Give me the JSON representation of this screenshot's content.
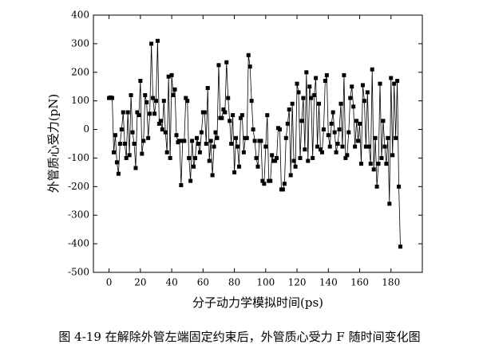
{
  "chart_data": {
    "type": "line",
    "caption": "图 4-19 在解除外管左端固定约束后，外管质心受力 F 随时间变化图",
    "xlabel": "分子动力学模拟时间(ps)",
    "ylabel": "外管质心受力(pN)",
    "xlim": [
      -10,
      200
    ],
    "ylim": [
      -500,
      400
    ],
    "xticks": [
      0,
      20,
      40,
      60,
      80,
      100,
      120,
      140,
      160,
      180
    ],
    "yticks": [
      -500,
      -400,
      -300,
      -200,
      -100,
      0,
      100,
      200,
      300,
      400
    ],
    "color": "#000000",
    "x": [
      0,
      1,
      2,
      3,
      4,
      5,
      6,
      7,
      8,
      9,
      10,
      11,
      12,
      13,
      14,
      15,
      16,
      17,
      18,
      19,
      20,
      21,
      22,
      23,
      24,
      25,
      26,
      27,
      28,
      29,
      30,
      31,
      32,
      33,
      34,
      35,
      36,
      37,
      38,
      39,
      40,
      41,
      42,
      43,
      44,
      45,
      46,
      47,
      48,
      49,
      50,
      51,
      52,
      53,
      54,
      55,
      56,
      57,
      58,
      59,
      60,
      61,
      62,
      63,
      64,
      65,
      66,
      67,
      68,
      69,
      70,
      71,
      72,
      73,
      74,
      75,
      76,
      77,
      78,
      79,
      80,
      81,
      82,
      83,
      84,
      85,
      86,
      87,
      88,
      89,
      90,
      91,
      92,
      93,
      94,
      95,
      96,
      97,
      98,
      99,
      100,
      101,
      102,
      103,
      104,
      105,
      106,
      107,
      108,
      109,
      110,
      111,
      112,
      113,
      114,
      115,
      116,
      117,
      118,
      119,
      120,
      121,
      122,
      123,
      124,
      125,
      126,
      127,
      128,
      129,
      130,
      131,
      132,
      133,
      134,
      135,
      136,
      137,
      138,
      139,
      140,
      141,
      142,
      143,
      144,
      145,
      146,
      147,
      148,
      149,
      150,
      151,
      152,
      153,
      154,
      155,
      156,
      157,
      158,
      159,
      160,
      161,
      162,
      163,
      164,
      165,
      166,
      167,
      168,
      169,
      170,
      171,
      172,
      173,
      174,
      175,
      176,
      177,
      178,
      179,
      180,
      181,
      182,
      183,
      184,
      185,
      186
    ],
    "values": [
      110,
      112,
      110,
      -80,
      -20,
      -115,
      -155,
      -50,
      0,
      60,
      -50,
      -100,
      60,
      -90,
      120,
      -10,
      -50,
      -135,
      60,
      50,
      170,
      -85,
      -40,
      120,
      95,
      -30,
      55,
      300,
      110,
      55,
      100,
      310,
      20,
      30,
      0,
      100,
      -10,
      -80,
      185,
      -100,
      190,
      120,
      140,
      -20,
      -45,
      -40,
      -195,
      -40,
      -40,
      110,
      100,
      -100,
      -180,
      -40,
      -130,
      -100,
      -30,
      -50,
      -80,
      -10,
      60,
      60,
      -50,
      145,
      -110,
      -40,
      -160,
      -60,
      -10,
      -30,
      225,
      40,
      40,
      70,
      60,
      235,
      110,
      30,
      -50,
      50,
      -150,
      -30,
      -60,
      -130,
      40,
      50,
      -80,
      -30,
      -30,
      260,
      220,
      100,
      0,
      -40,
      -100,
      -130,
      -40,
      -40,
      -180,
      -190,
      -60,
      50,
      -180,
      -180,
      -90,
      -110,
      -110,
      -100,
      5,
      0,
      -210,
      -210,
      -190,
      -30,
      20,
      70,
      -160,
      90,
      -110,
      -130,
      160,
      130,
      -100,
      30,
      110,
      -70,
      200,
      -110,
      150,
      110,
      -100,
      120,
      180,
      -60,
      90,
      -70,
      -80,
      0,
      170,
      190,
      -20,
      -60,
      20,
      60,
      -10,
      -80,
      -50,
      0,
      90,
      -60,
      190,
      -100,
      -90,
      -10,
      110,
      150,
      80,
      -60,
      30,
      -40,
      20,
      -120,
      155,
      100,
      -60,
      130,
      -60,
      -120,
      210,
      -140,
      -30,
      -200,
      -120,
      160,
      -100,
      30,
      -60,
      -120,
      -30,
      -260,
      180,
      -90,
      160,
      -30,
      170,
      -200,
      -410
    ]
  }
}
